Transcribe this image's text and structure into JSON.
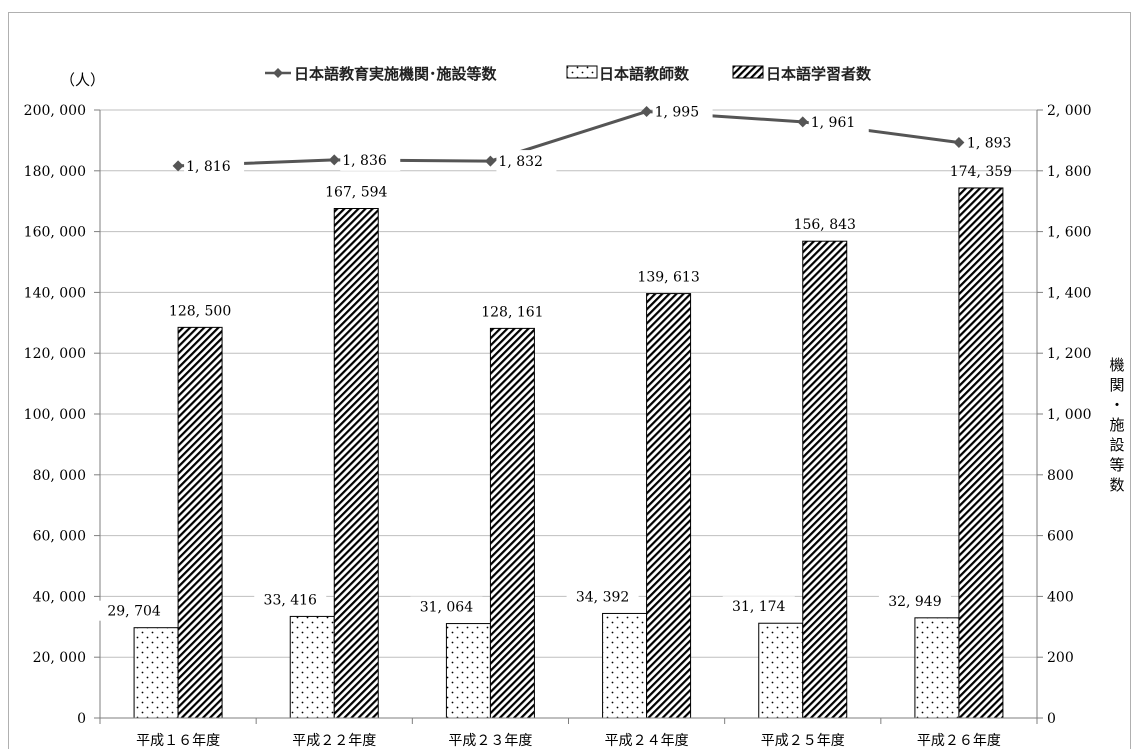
{
  "chart_data": {
    "type": "bar",
    "categories": [
      "平成１６年度",
      "平成２２年度",
      "平成２３年度",
      "平成２４年度",
      "平成２５年度",
      "平成２６年度"
    ],
    "series": [
      {
        "name": "日本語教師数",
        "kind": "bar",
        "axis": "left",
        "pattern": "dots",
        "values": [
          29704,
          33416,
          31064,
          34392,
          31174,
          32949
        ],
        "labels": [
          "29, 704",
          "33, 416",
          "31, 064",
          "34, 392",
          "31, 174",
          "32, 949"
        ]
      },
      {
        "name": "日本語学習者数",
        "kind": "bar",
        "axis": "left",
        "pattern": "hatch",
        "values": [
          128500,
          167594,
          128161,
          139613,
          156843,
          174359
        ],
        "labels": [
          "128, 500",
          "167, 594",
          "128, 161",
          "139, 613",
          "156, 843",
          "174, 359"
        ]
      },
      {
        "name": "日本語教育実施機関･施設等数",
        "kind": "line",
        "axis": "right",
        "marker": "diamond",
        "values": [
          1816,
          1836,
          1832,
          1995,
          1961,
          1893
        ],
        "labels": [
          "1, 816",
          "1, 836",
          "1, 832",
          "1, 995",
          "1, 961",
          "1, 893"
        ]
      }
    ],
    "left_axis": {
      "unit": "（人）",
      "min": 0,
      "max": 200000,
      "ticks": [
        "0",
        "20, 000",
        "40, 000",
        "60, 000",
        "80, 000",
        "100, 000",
        "120, 000",
        "140, 000",
        "160, 000",
        "180, 000",
        "200, 000"
      ]
    },
    "right_axis": {
      "title": "機関・施設等数",
      "min": 0,
      "max": 2000,
      "ticks": [
        "0",
        "200",
        "400",
        "600",
        "800",
        "1, 000",
        "1, 200",
        "1, 400",
        "1, 600",
        "1, 800",
        "2, 000"
      ]
    },
    "grid": true,
    "legend_position": "top",
    "colors": {
      "line": "#555555",
      "grid": "#bfbfbf",
      "axis": "#7f7f7f",
      "bar_border": "#000000"
    }
  }
}
